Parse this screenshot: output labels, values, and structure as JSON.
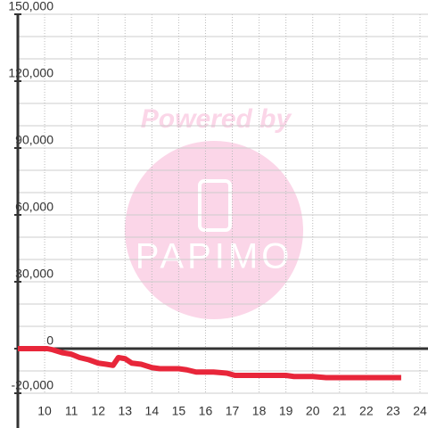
{
  "chart_data": {
    "type": "line",
    "watermark": {
      "line1": "Powered by",
      "line2": "PAPIMO"
    },
    "series": [
      {
        "color": "#e8263a",
        "x": [
          9.0,
          10.1,
          10.3,
          10.65,
          11.0,
          11.3,
          11.65,
          12.0,
          12.3,
          12.55,
          12.75,
          13.0,
          13.25,
          13.6,
          14.0,
          14.3,
          15.0,
          15.3,
          15.65,
          16.3,
          16.8,
          17.1,
          18.0,
          19.0,
          19.3,
          20.0,
          20.5,
          23.3
        ],
        "values": [
          0,
          0,
          -500,
          -1800,
          -2500,
          -4000,
          -5000,
          -6500,
          -7000,
          -7500,
          -4000,
          -4500,
          -6500,
          -7000,
          -8500,
          -9000,
          -9000,
          -9500,
          -10500,
          -10500,
          -11000,
          -12000,
          -12000,
          -12000,
          -12500,
          -12500,
          -13000,
          -13000
        ]
      }
    ],
    "xlim": [
      9,
      24.3
    ],
    "xticks": [
      10,
      11,
      12,
      13,
      14,
      15,
      16,
      17,
      18,
      19,
      20,
      21,
      22,
      23,
      24
    ],
    "ylim": [
      -20000,
      150000
    ],
    "yticks": [
      {
        "value": -20000,
        "label": "-20,000"
      },
      0,
      {
        "value": 30000,
        "label": "30,000"
      },
      {
        "value": 60000,
        "label": "60,000"
      },
      {
        "value": 90000,
        "label": "90,000"
      },
      {
        "value": 120000,
        "label": "120,000"
      },
      {
        "value": 150000,
        "label": "150,000"
      }
    ],
    "yminorticks": [
      -10000,
      10000,
      20000,
      40000,
      50000,
      70000,
      80000,
      100000,
      110000,
      130000,
      140000
    ],
    "grid": true
  }
}
